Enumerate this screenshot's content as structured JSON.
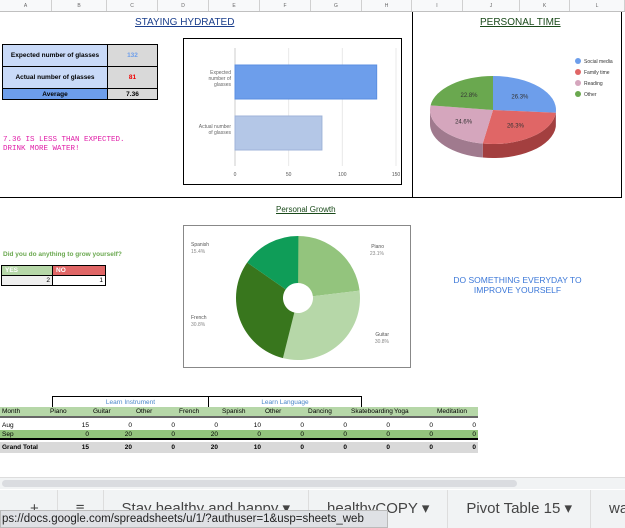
{
  "columns": [
    "A",
    "B",
    "C",
    "D",
    "E",
    "F",
    "G",
    "H",
    "I",
    "J",
    "K",
    "L"
  ],
  "hydration": {
    "title": "STAYING HYDRATED",
    "expected_label": "Expected number of glasses",
    "expected_value": "132",
    "actual_label": "Actual number of glasses",
    "actual_value": "81",
    "average_label": "Average",
    "average_value": "7.36",
    "message_line1": "7.36 IS LESS THAN EXPECTED.",
    "message_line2": "DRINK MORE WATER!"
  },
  "personal_growth_section": {
    "question": "Did you do anything to grow yourself?",
    "yes_label": "YES",
    "no_label": "NO",
    "yes_value": "2",
    "no_value": "1",
    "motto": "DO SOMETHING EVERYDAY TO IMPROVE YOURSELF"
  },
  "chart_data": [
    {
      "type": "bar",
      "orientation": "horizontal",
      "title": "",
      "categories": [
        "Expected number of glasses",
        "Actual number of glasses"
      ],
      "values": [
        132,
        81
      ],
      "colors": [
        "#6d9eeb",
        "#b4c7e7"
      ],
      "xlim": [
        0,
        150
      ],
      "xticks": [
        "0",
        "50",
        "100",
        "150"
      ]
    },
    {
      "type": "pie",
      "title": "PERSONAL TIME",
      "labels": [
        "Social media",
        "Family time",
        "Reading",
        "Other"
      ],
      "values": [
        26.3,
        26.3,
        24.6,
        22.8
      ],
      "value_labels": [
        "26.3%",
        "26.3%",
        "24.6%",
        "22.8%"
      ],
      "colors": [
        "#6d9eeb",
        "#e06666",
        "#d5a6bd",
        "#6aa84f"
      ],
      "legend": "right"
    },
    {
      "type": "pie",
      "donut": true,
      "title": "Personal Growth",
      "labels": [
        "Piano",
        "Guitar",
        "French",
        "Spanish"
      ],
      "values": [
        23.1,
        30.8,
        30.8,
        15.4
      ],
      "value_labels": [
        "23.1%",
        "30.8%",
        "30.8%",
        "15.4%"
      ],
      "colors": [
        "#93c47d",
        "#b6d7a8",
        "#38761d",
        "#0f9d58"
      ]
    }
  ],
  "pivot": {
    "group1": "Learn Instrument",
    "group2": "Learn Language",
    "headers": [
      "Month",
      "Piano",
      "Guitar",
      "Other",
      "French",
      "Spanish",
      "Other",
      "Dancing",
      "Skateboarding",
      "Yoga",
      "Meditation"
    ],
    "rows": [
      [
        "Aug",
        "15",
        "0",
        "0",
        "0",
        "10",
        "0",
        "0",
        "0",
        "0",
        "0"
      ],
      [
        "Sep",
        "0",
        "20",
        "0",
        "20",
        "0",
        "0",
        "0",
        "0",
        "0",
        "0"
      ]
    ],
    "total": [
      "Grand Total",
      "15",
      "20",
      "0",
      "20",
      "10",
      "0",
      "0",
      "0",
      "0",
      "0"
    ]
  },
  "tabs": {
    "add": "+",
    "menu": "≡",
    "sheets": [
      "Stay healthy and happy",
      "healthyCOPY",
      "Pivot Table 15",
      "wa"
    ],
    "dropdown": "▾"
  },
  "status_url": "ps://docs.google.com/spreadsheets/u/1/?authuser=1&usp=sheets_web"
}
